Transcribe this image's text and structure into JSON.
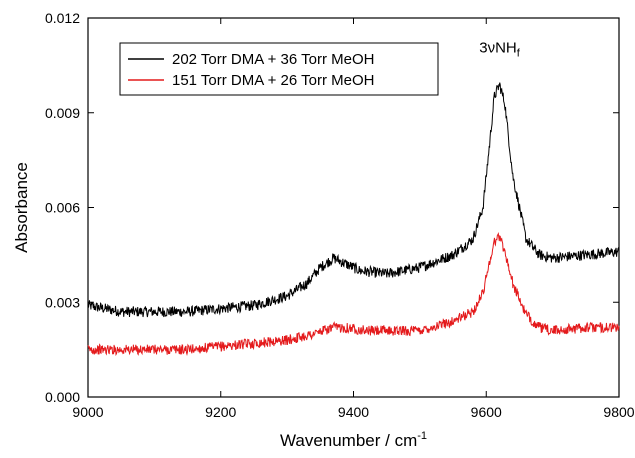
{
  "chart_data": {
    "type": "line",
    "title": "",
    "xlabel": "Wavenumber / cm",
    "xlabel_sup": "-1",
    "ylabel": "Absorbance",
    "xlim": [
      9000,
      9800
    ],
    "ylim": [
      0.0,
      0.012
    ],
    "xticks": [
      9000,
      9200,
      9400,
      9600,
      9800
    ],
    "xtick_labels": [
      "9000",
      "9200",
      "9400",
      "9600",
      "9800"
    ],
    "yticks": [
      0.0,
      0.003,
      0.006,
      0.009,
      0.012
    ],
    "ytick_labels": [
      "0.000",
      "0.003",
      "0.006",
      "0.009",
      "0.012"
    ],
    "grid": false,
    "legend_position": "top-left",
    "annotation": {
      "base": "3νNH",
      "subscript": "f",
      "x": 9620,
      "y": 0.0109
    },
    "series": [
      {
        "name": "202 Torr DMA + 36 Torr MeOH",
        "color": "#000000",
        "x": [
          9000,
          9050,
          9100,
          9150,
          9200,
          9250,
          9300,
          9330,
          9350,
          9370,
          9390,
          9410,
          9450,
          9500,
          9550,
          9580,
          9595,
          9605,
          9612,
          9620,
          9628,
          9640,
          9660,
          9680,
          9700,
          9750,
          9800
        ],
        "y": [
          0.0029,
          0.0027,
          0.0027,
          0.0027,
          0.0028,
          0.0029,
          0.0032,
          0.0036,
          0.0041,
          0.0044,
          0.0042,
          0.004,
          0.0039,
          0.0041,
          0.0045,
          0.005,
          0.006,
          0.008,
          0.0095,
          0.0099,
          0.0093,
          0.007,
          0.005,
          0.0045,
          0.0044,
          0.0045,
          0.0046
        ],
        "noise": 0.00017
      },
      {
        "name": "151 Torr DMA + 26 Torr MeOH",
        "color": "#e41a1c",
        "x": [
          9000,
          9050,
          9100,
          9150,
          9200,
          9250,
          9300,
          9340,
          9370,
          9390,
          9420,
          9450,
          9500,
          9550,
          9580,
          9595,
          9605,
          9612,
          9620,
          9628,
          9640,
          9660,
          9680,
          9700,
          9750,
          9800
        ],
        "y": [
          0.0015,
          0.0015,
          0.0015,
          0.0015,
          0.0016,
          0.0017,
          0.0018,
          0.002,
          0.0022,
          0.0022,
          0.0021,
          0.0021,
          0.0021,
          0.0024,
          0.0027,
          0.0033,
          0.0043,
          0.0049,
          0.0051,
          0.0046,
          0.0036,
          0.0026,
          0.0022,
          0.0021,
          0.0022,
          0.0022
        ],
        "noise": 0.00016
      }
    ]
  }
}
